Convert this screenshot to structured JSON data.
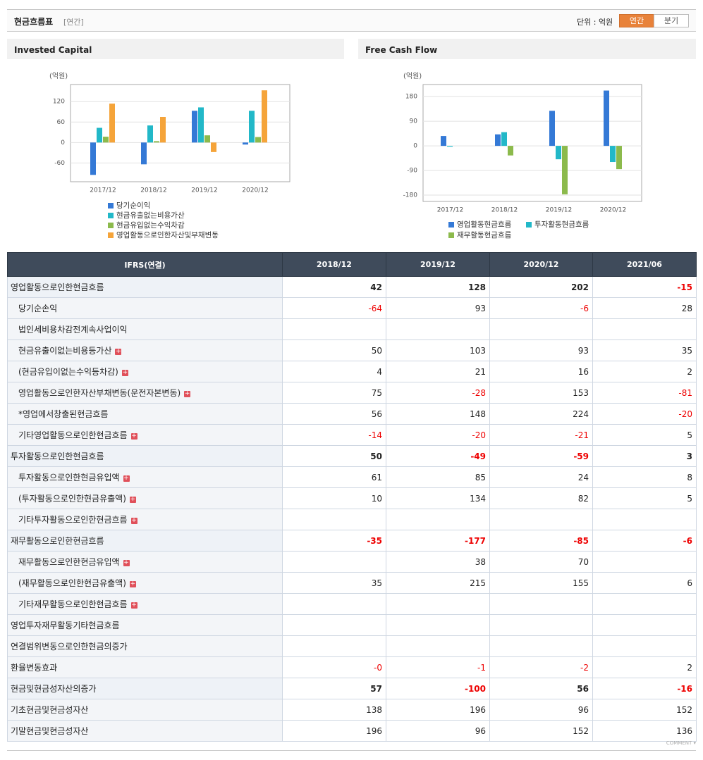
{
  "header": {
    "title": "현금흐름표",
    "period": "[연간]",
    "unit": "단위 : 억원",
    "buttons": [
      "연간",
      "분기"
    ]
  },
  "chart_data": [
    {
      "type": "bar",
      "title": "Invested Capital",
      "unit": "(억원)",
      "categories": [
        "2017/12",
        "2018/12",
        "2019/12",
        "2020/12"
      ],
      "ylim": [
        -115,
        170
      ],
      "yticks": [
        -60,
        0,
        60,
        120
      ],
      "grid": true,
      "series": [
        {
          "name": "당기순이익",
          "color": "#3479d6",
          "values": [
            -95,
            -64,
            93,
            -6
          ]
        },
        {
          "name": "현금유출없는비용가산",
          "color": "#22b8c8",
          "values": [
            43,
            50,
            103,
            93
          ]
        },
        {
          "name": "현금유입없는수익차감",
          "color": "#8cba4c",
          "values": [
            17,
            4,
            21,
            16
          ]
        },
        {
          "name": "영업활동으로인한자산및부채변동",
          "color": "#f5a43a",
          "values": [
            114,
            75,
            -28,
            153
          ]
        }
      ]
    },
    {
      "type": "bar",
      "title": "Free Cash Flow",
      "unit": "(억원)",
      "categories": [
        "2017/12",
        "2018/12",
        "2019/12",
        "2020/12"
      ],
      "ylim": [
        -203,
        224
      ],
      "yticks": [
        -180,
        -90,
        0,
        90,
        180
      ],
      "grid": true,
      "series": [
        {
          "name": "영업활동현금흐름",
          "color": "#3479d6",
          "values": [
            36,
            42,
            128,
            202
          ]
        },
        {
          "name": "투자활동현금흐름",
          "color": "#22b8c8",
          "values": [
            -3,
            50,
            -49,
            -59
          ]
        },
        {
          "name": "재무활동현금흐름",
          "color": "#8cba4c",
          "values": [
            0,
            -35,
            -177,
            -85
          ]
        }
      ]
    }
  ],
  "table": {
    "columns": [
      "IFRS(연결)",
      "2018/12",
      "2019/12",
      "2020/12",
      "2021/06"
    ],
    "rows": [
      {
        "label": "영업활동으로인한현금흐름",
        "bold": true,
        "values": [
          "42",
          "128",
          "202",
          "-15"
        ]
      },
      {
        "label": "당기순손익",
        "indent": true,
        "values": [
          "-64",
          "93",
          "-6",
          "28"
        ]
      },
      {
        "label": "법인세비용차감전계속사업이익",
        "indent": true,
        "values": [
          null,
          null,
          null,
          null
        ]
      },
      {
        "label": "현금유출이없는비용등가산",
        "indent": true,
        "expandable": true,
        "values": [
          "50",
          "103",
          "93",
          "35"
        ]
      },
      {
        "label": "(현금유입이없는수익등차감)",
        "indent": true,
        "expandable": true,
        "values": [
          "4",
          "21",
          "16",
          "2"
        ]
      },
      {
        "label": "영업활동으로인한자산부채변동(운전자본변동)",
        "indent": true,
        "expandable": true,
        "values": [
          "75",
          "-28",
          "153",
          "-81"
        ]
      },
      {
        "label": "*영업에서창출된현금흐름",
        "indent": true,
        "values": [
          "56",
          "148",
          "224",
          "-20"
        ]
      },
      {
        "label": "기타영업활동으로인한현금흐름",
        "indent": true,
        "expandable": true,
        "values": [
          "-14",
          "-20",
          "-21",
          "5"
        ]
      },
      {
        "label": "투자활동으로인한현금흐름",
        "bold": true,
        "values": [
          "50",
          "-49",
          "-59",
          "3"
        ]
      },
      {
        "label": "투자활동으로인한현금유입액",
        "indent": true,
        "expandable": true,
        "values": [
          "61",
          "85",
          "24",
          "8"
        ]
      },
      {
        "label": "(투자활동으로인한현금유출액)",
        "indent": true,
        "expandable": true,
        "values": [
          "10",
          "134",
          "82",
          "5"
        ]
      },
      {
        "label": "기타투자활동으로인한현금흐름",
        "indent": true,
        "expandable": true,
        "values": [
          null,
          null,
          null,
          null
        ]
      },
      {
        "label": "재무활동으로인한현금흐름",
        "bold": true,
        "values": [
          "-35",
          "-177",
          "-85",
          "-6"
        ]
      },
      {
        "label": "재무활동으로인한현금유입액",
        "indent": true,
        "expandable": true,
        "values": [
          null,
          "38",
          "70",
          null
        ]
      },
      {
        "label": "(재무활동으로인한현금유출액)",
        "indent": true,
        "expandable": true,
        "values": [
          "35",
          "215",
          "155",
          "6"
        ]
      },
      {
        "label": "기타재무활동으로인한현금흐름",
        "indent": true,
        "expandable": true,
        "values": [
          null,
          null,
          null,
          null
        ]
      },
      {
        "label": "영업투자재무활동기타현금흐름",
        "values": [
          null,
          null,
          null,
          null
        ]
      },
      {
        "label": "연결범위변동으로인한현금의증가",
        "values": [
          null,
          null,
          null,
          null
        ]
      },
      {
        "label": "환율변동효과",
        "values": [
          "-0",
          "-1",
          "-2",
          "2"
        ]
      },
      {
        "label": "현금및현금성자산의증가",
        "bold": true,
        "values": [
          "57",
          "-100",
          "56",
          "-16"
        ]
      },
      {
        "label": "기초현금및현금성자산",
        "values": [
          "138",
          "196",
          "96",
          "152"
        ]
      },
      {
        "label": "기말현금및현금성자산",
        "values": [
          "196",
          "96",
          "152",
          "136"
        ]
      }
    ]
  },
  "footer": {
    "comment": "COMMENT"
  }
}
